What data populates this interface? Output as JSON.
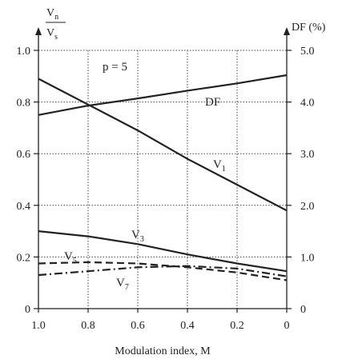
{
  "chart_data": {
    "type": "line",
    "xlabel": "Modulation index, M",
    "x_reversed": true,
    "xlim": [
      1.0,
      0
    ],
    "x_ticks": [
      "1.0",
      "0.8",
      "0.6",
      "0.4",
      "0.2",
      "0"
    ],
    "x_tick_values": [
      1.0,
      0.8,
      0.6,
      0.4,
      0.2,
      0
    ],
    "ylabel_left": {
      "num_main": "V",
      "num_sub": "n",
      "den_main": "V",
      "den_sub": "s"
    },
    "ylim_left": [
      0,
      1.0
    ],
    "y_ticks_left": [
      "0",
      "0.2",
      "0.4",
      "0.6",
      "0.8",
      "1.0"
    ],
    "y_tick_values_left": [
      0,
      0.2,
      0.4,
      0.6,
      0.8,
      1.0
    ],
    "ylabel_right": "DF (%)",
    "ylim_right": [
      0,
      5.0
    ],
    "y_ticks_right": [
      "0",
      "1.0",
      "2.0",
      "3.0",
      "4.0",
      "5.0"
    ],
    "y_tick_values_right": [
      0,
      1.0,
      2.0,
      3.0,
      4.0,
      5.0
    ],
    "grid": true,
    "annotation": "p = 5",
    "series": [
      {
        "name": "V1",
        "label_main": "V",
        "label_sub": "1",
        "axis": "left",
        "style": "solid",
        "x": [
          1.0,
          0.8,
          0.6,
          0.4,
          0.2,
          0
        ],
        "y": [
          0.89,
          0.79,
          0.69,
          0.58,
          0.48,
          0.38
        ]
      },
      {
        "name": "DF",
        "label_main": "DF",
        "label_sub": "",
        "axis": "right",
        "style": "solid",
        "x": [
          1.0,
          0.8,
          0.6,
          0.4,
          0.2,
          0
        ],
        "y": [
          3.75,
          3.93,
          4.07,
          4.22,
          4.36,
          4.52
        ]
      },
      {
        "name": "V3",
        "label_main": "V",
        "label_sub": "3",
        "axis": "left",
        "style": "solid",
        "x": [
          1.0,
          0.8,
          0.6,
          0.4,
          0.2,
          0
        ],
        "y": [
          0.3,
          0.28,
          0.25,
          0.21,
          0.175,
          0.145
        ]
      },
      {
        "name": "V5",
        "label_main": "V",
        "label_sub": "5",
        "axis": "left",
        "style": "dashed",
        "x": [
          1.0,
          0.8,
          0.6,
          0.4,
          0.2,
          0
        ],
        "y": [
          0.175,
          0.18,
          0.175,
          0.16,
          0.14,
          0.11
        ]
      },
      {
        "name": "V7",
        "label_main": "V",
        "label_sub": "7",
        "axis": "left",
        "style": "dashdot",
        "x": [
          1.0,
          0.8,
          0.6,
          0.4,
          0.2,
          0
        ],
        "y": [
          0.13,
          0.145,
          0.16,
          0.165,
          0.155,
          0.125
        ]
      }
    ]
  }
}
